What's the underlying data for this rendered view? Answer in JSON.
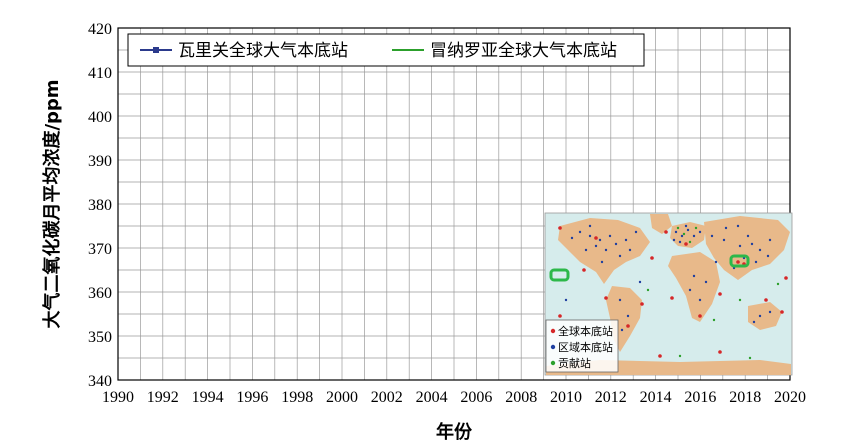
{
  "chart_data": {
    "type": "line",
    "xlabel": "年份",
    "ylabel": "大气二氧化碳月平均浓度/ppm",
    "xlim": [
      1990,
      2020
    ],
    "ylim": [
      340,
      420
    ],
    "xticks": [
      1990,
      1992,
      1994,
      1996,
      1998,
      2000,
      2002,
      2004,
      2006,
      2008,
      2010,
      2012,
      2014,
      2016,
      2018,
      2020
    ],
    "yticks": [
      340,
      350,
      360,
      370,
      380,
      390,
      400,
      410,
      420
    ],
    "grid": true,
    "legend_position": "top-left",
    "series": [
      {
        "name": "瓦里关全球大气本底站",
        "color": "#2b3a8c",
        "marker": "square",
        "x": [],
        "values": []
      },
      {
        "name": "冒纳罗亚全球大气本底站",
        "color": "#2ca02c",
        "marker": "none",
        "x": [],
        "values": []
      }
    ]
  },
  "inset_map": {
    "legend": [
      {
        "label": "全球本底站",
        "color": "#d62728"
      },
      {
        "label": "区域本底站",
        "color": "#1f3fa0"
      },
      {
        "label": "贡献站",
        "color": "#2ca02c"
      }
    ],
    "highlight_color": "#2db84a",
    "ocean_color": "#d6ecec",
    "land_color": "#e8b98a"
  }
}
